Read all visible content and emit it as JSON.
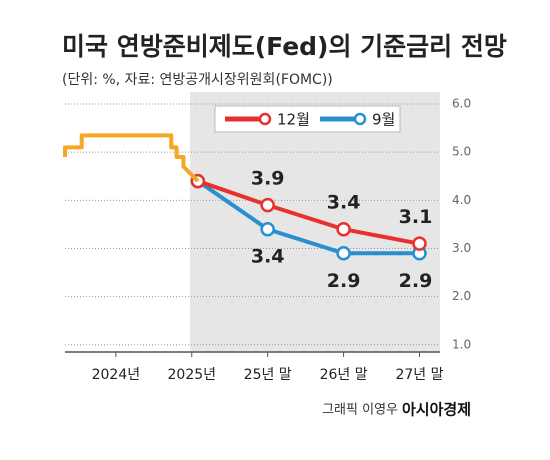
{
  "chart_data": {
    "type": "line",
    "title": "미국 연방준비제도(Fed)의 기준금리 전망",
    "subtitle": "(단위: %, 자료: 연방공개시장위원회(FOMC))",
    "credit": "그래픽 이영우",
    "publisher": "아시아경제",
    "xlim": [
      2023.33,
      2028.27
    ],
    "xticks": [
      {
        "value": 2024,
        "label": "2024년"
      },
      {
        "value": 2025,
        "label": "2025년"
      },
      {
        "value": 2026,
        "label": "25년 말"
      },
      {
        "value": 2027,
        "label": "26년 말"
      },
      {
        "value": 2028,
        "label": "27년 말"
      }
    ],
    "ylim": [
      0.85,
      6.25
    ],
    "yticks": [
      {
        "value": 1,
        "label": "1.0"
      },
      {
        "value": 2,
        "label": "2.0"
      },
      {
        "value": 3,
        "label": "3.0"
      },
      {
        "value": 4,
        "label": "4.0"
      },
      {
        "value": 5,
        "label": "5.0"
      },
      {
        "value": 6,
        "label": "6.0"
      }
    ],
    "grid": true,
    "series": [
      {
        "color": "#f5a623",
        "x": [
          2023.33,
          2023.33,
          2023.37,
          2023.55,
          2023.55,
          2024.73,
          2024.73,
          2024.8,
          2024.8,
          2024.89,
          2024.89,
          2025.08
        ],
        "values": [
          4.9,
          5.1,
          5.1,
          5.1,
          5.35,
          5.35,
          5.1,
          5.1,
          4.9,
          4.9,
          4.7,
          4.4
        ]
      },
      {
        "name": "12월",
        "color": "#e8302f",
        "markers": true,
        "x": [
          2025.08,
          2026,
          2027,
          2028
        ],
        "values": [
          4.4,
          3.9,
          3.4,
          3.1
        ],
        "label_side": "above"
      },
      {
        "name": "9월",
        "color": "#2a8fd0",
        "markers": true,
        "x": [
          2025.08,
          2026,
          2027,
          2028
        ],
        "values": [
          4.4,
          3.4,
          2.9,
          2.9
        ],
        "label_side": "below"
      }
    ]
  }
}
